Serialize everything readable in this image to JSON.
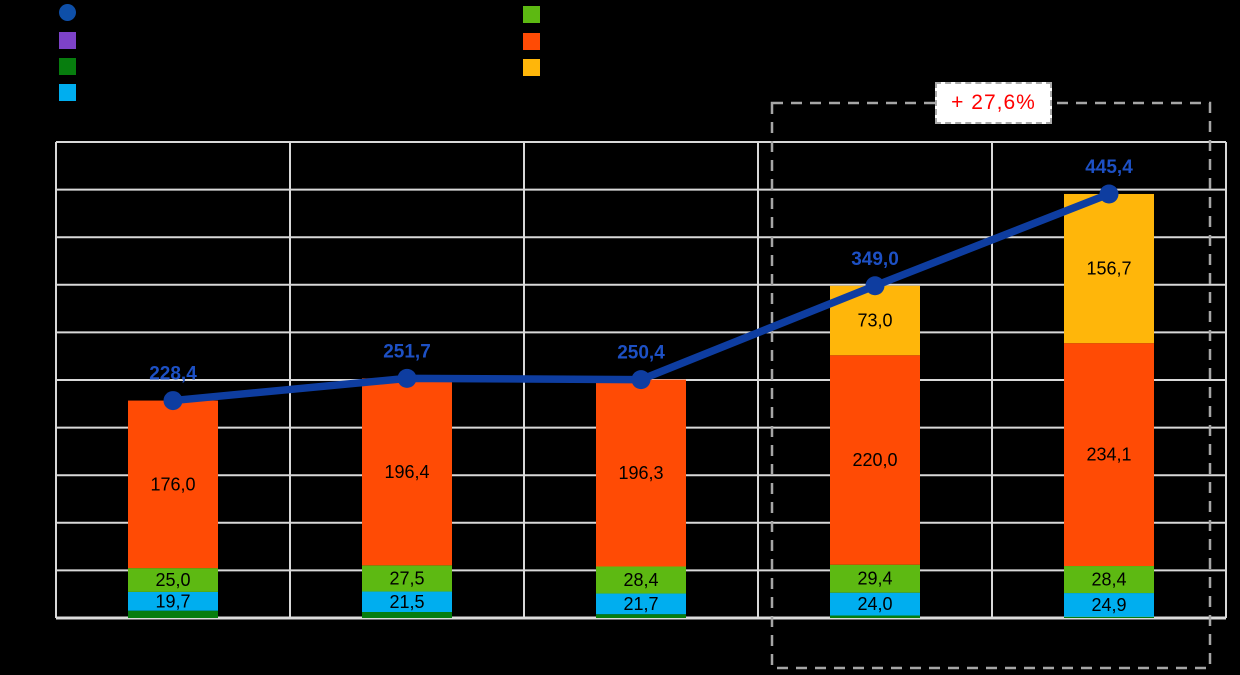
{
  "page": {
    "background": "#000000"
  },
  "legend": {
    "labels_visible": false,
    "left_column": [
      {
        "name": "line-total-series",
        "shape": "circle",
        "color": "#0E4FA8"
      },
      {
        "name": "purple-series",
        "shape": "square",
        "color": "#7D42C8"
      },
      {
        "name": "dark-green-series",
        "shape": "square",
        "color": "#077D0E"
      },
      {
        "name": "cyan-series",
        "shape": "square",
        "color": "#00AEEF"
      }
    ],
    "right_column": [
      {
        "name": "light-green-series",
        "shape": "square",
        "color": "#5DB912"
      },
      {
        "name": "orange-series",
        "shape": "square",
        "color": "#FF4B05"
      },
      {
        "name": "yellow-series",
        "shape": "square",
        "color": "#FFB60A"
      }
    ]
  },
  "chart_data": {
    "type": "bar",
    "subtype": "stacked-bars-with-total-line",
    "categories": [
      "",
      "",
      "",
      "",
      ""
    ],
    "axis_tick_labels_visible": false,
    "ylim": [
      0,
      500
    ],
    "ytick_step": 50,
    "grid": true,
    "series": [
      {
        "name": "dark-green-base",
        "color": "#077D0E",
        "values": [
          7.7,
          6.3,
          4.0,
          2.6,
          1.3
        ],
        "labels": [
          null,
          null,
          null,
          null,
          null
        ]
      },
      {
        "name": "cyan",
        "color": "#00AEEF",
        "values": [
          19.7,
          21.5,
          21.7,
          24.0,
          24.9
        ],
        "labels": [
          "19,7",
          "21,5",
          "21,7",
          "24,0",
          "24,9"
        ]
      },
      {
        "name": "light-green",
        "color": "#5DB912",
        "values": [
          25.0,
          27.5,
          28.4,
          29.4,
          28.4
        ],
        "labels": [
          "25,0",
          "27,5",
          "28,4",
          "29,4",
          "28,4"
        ]
      },
      {
        "name": "orange",
        "color": "#FF4B05",
        "values": [
          176.0,
          196.4,
          196.3,
          220.0,
          234.1
        ],
        "labels": [
          "176,0",
          "196,4",
          "196,3",
          "220,0",
          "234,1"
        ]
      },
      {
        "name": "yellow",
        "color": "#FFB60A",
        "values": [
          0,
          0,
          0,
          73.0,
          156.7
        ],
        "labels": [
          null,
          null,
          null,
          "73,0",
          "156,7"
        ]
      }
    ],
    "line_series": {
      "name": "total-line",
      "color": "#0E3DA0",
      "label_color": "#1D50C4",
      "values": [
        228.4,
        251.7,
        250.4,
        349.0,
        445.4
      ],
      "labels": [
        "228,4",
        "251,7",
        "250,4",
        "349,0",
        "445,4"
      ]
    },
    "segment_label_color": "#000000",
    "colors": {
      "gridline": "#D9D9D9",
      "axis_line": "#DCDCDC",
      "highlight_box": "#A6A6A6"
    },
    "highlight": {
      "covered_categories": [
        3,
        4
      ],
      "annotation": "+ 27,6%"
    }
  },
  "annotation": {
    "text": "+ 27,6%",
    "text_color": "#FF0000",
    "box_background": "#FFFFFF",
    "border_color": "#ABABAB"
  }
}
